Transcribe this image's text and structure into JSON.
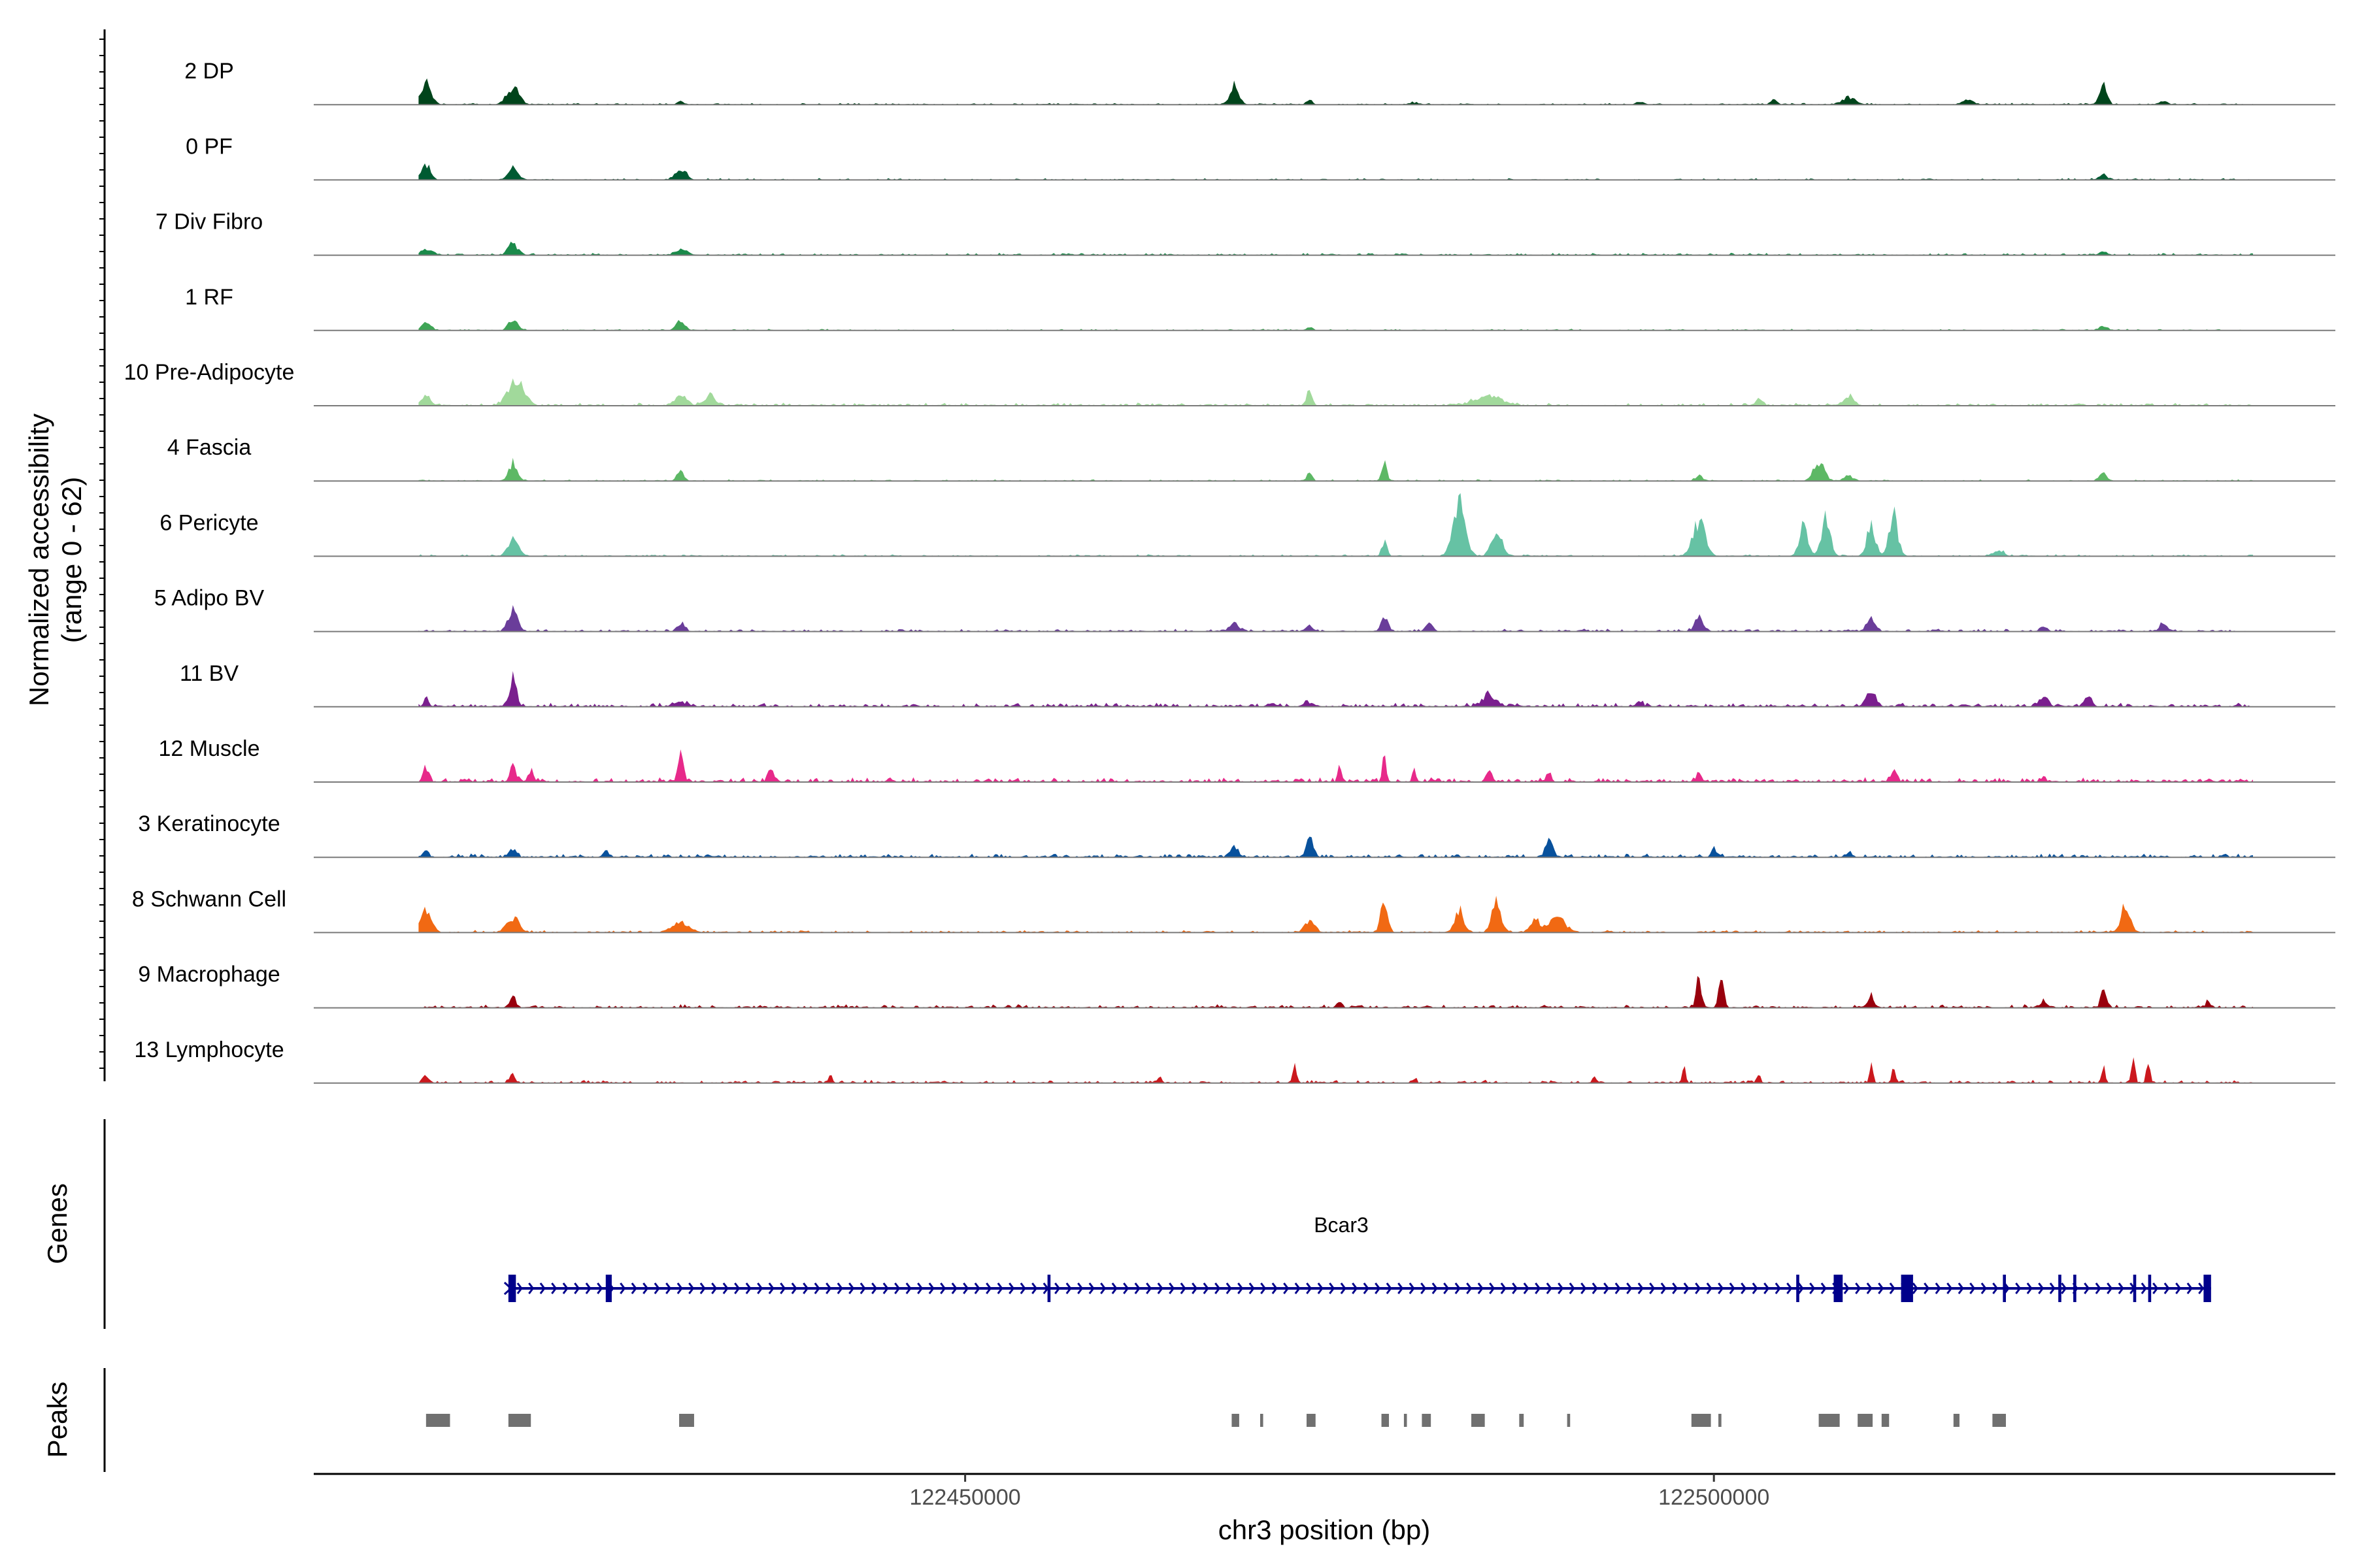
{
  "chart_data": {
    "type": "area",
    "title": "",
    "ylabel": [
      "Normalized accessibility",
      "(range 0 - 62)"
    ],
    "xlabel": "chr3 position (bp)",
    "xlim": [
      122406500,
      122541500
    ],
    "ylim": [
      0,
      62
    ],
    "x_ticks": [
      122450000,
      122500000
    ],
    "x_tick_labels": [
      "122450000",
      "122500000"
    ],
    "tracks": [
      {
        "name": "2 DP",
        "color": "#00441b",
        "baseline_noise": 0.9,
        "peaks": [
          [
            122414000,
            38,
            600
          ],
          [
            122419800,
            32,
            700
          ],
          [
            122431000,
            5,
            400
          ],
          [
            122468000,
            34,
            500
          ],
          [
            122473000,
            10,
            300
          ],
          [
            122480000,
            4,
            400
          ],
          [
            122495000,
            4,
            400
          ],
          [
            122504000,
            9,
            300
          ],
          [
            122509000,
            12,
            800
          ],
          [
            122517000,
            9,
            600
          ],
          [
            122526000,
            40,
            400
          ],
          [
            122530000,
            5,
            400
          ]
        ]
      },
      {
        "name": "0 PF",
        "color": "#005a32",
        "baseline_noise": 0.9,
        "peaks": [
          [
            122414000,
            28,
            500
          ],
          [
            122419800,
            28,
            500
          ],
          [
            122431000,
            20,
            600
          ],
          [
            122526000,
            8,
            500
          ]
        ]
      },
      {
        "name": "7 Div Fibro",
        "color": "#1a8a4a",
        "baseline_noise": 1.2,
        "peaks": [
          [
            122414000,
            10,
            700
          ],
          [
            122419800,
            18,
            600
          ],
          [
            122431000,
            9,
            700
          ],
          [
            122526000,
            5,
            500
          ]
        ]
      },
      {
        "name": "1 RF",
        "color": "#3fa556",
        "baseline_noise": 0.8,
        "peaks": [
          [
            122414000,
            14,
            500
          ],
          [
            122419800,
            20,
            500
          ],
          [
            122431000,
            18,
            500
          ],
          [
            122473000,
            7,
            300
          ],
          [
            122526000,
            9,
            400
          ]
        ]
      },
      {
        "name": "10 Pre-Adipocyte",
        "color": "#a1d99b",
        "baseline_noise": 1.6,
        "peaks": [
          [
            122414000,
            18,
            500
          ],
          [
            122420000,
            45,
            900
          ],
          [
            122431000,
            19,
            700
          ],
          [
            122433000,
            18,
            600
          ],
          [
            122473000,
            32,
            300
          ],
          [
            122485000,
            16,
            1500
          ],
          [
            122503000,
            10,
            500
          ],
          [
            122509000,
            20,
            500
          ]
        ]
      },
      {
        "name": "4 Fascia",
        "color": "#5db865",
        "baseline_noise": 0.8,
        "peaks": [
          [
            122419800,
            32,
            500
          ],
          [
            122431000,
            16,
            400
          ],
          [
            122473000,
            14,
            300
          ],
          [
            122478000,
            30,
            300
          ],
          [
            122499000,
            9,
            400
          ],
          [
            122507000,
            35,
            600
          ],
          [
            122509000,
            10,
            500
          ],
          [
            122526000,
            14,
            400
          ]
        ]
      },
      {
        "name": "6 Pericyte",
        "color": "#66c2a4",
        "baseline_noise": 1.0,
        "peaks": [
          [
            122419800,
            32,
            600
          ],
          [
            122478000,
            24,
            300
          ],
          [
            122483000,
            95,
            700
          ],
          [
            122485500,
            45,
            600
          ],
          [
            122499000,
            62,
            700
          ],
          [
            122506000,
            55,
            500
          ],
          [
            122507500,
            68,
            500
          ],
          [
            122510500,
            55,
            500
          ],
          [
            122512000,
            72,
            500
          ],
          [
            122519000,
            10,
            600
          ]
        ]
      },
      {
        "name": "5 Adipo BV",
        "color": "#6a3d9a",
        "baseline_noise": 1.4,
        "peaks": [
          [
            122419800,
            45,
            500
          ],
          [
            122431000,
            16,
            400
          ],
          [
            122468000,
            12,
            600
          ],
          [
            122473000,
            10,
            400
          ],
          [
            122478000,
            26,
            400
          ],
          [
            122481000,
            15,
            400
          ],
          [
            122499000,
            25,
            500
          ],
          [
            122510500,
            22,
            500
          ],
          [
            122522000,
            8,
            400
          ],
          [
            122530000,
            16,
            400
          ]
        ]
      },
      {
        "name": "11 BV",
        "color": "#7a1f8e",
        "baseline_noise": 2.2,
        "peaks": [
          [
            122414000,
            14,
            300
          ],
          [
            122419800,
            46,
            400
          ],
          [
            122431000,
            8,
            800
          ],
          [
            122473000,
            8,
            600
          ],
          [
            122485000,
            22,
            700
          ],
          [
            122495000,
            10,
            400
          ],
          [
            122510500,
            28,
            500
          ],
          [
            122522000,
            18,
            500
          ],
          [
            122525000,
            18,
            400
          ],
          [
            122535000,
            6,
            200
          ]
        ]
      },
      {
        "name": "12 Muscle",
        "color": "#e7298a",
        "baseline_noise": 2.4,
        "peaks": [
          [
            122414000,
            28,
            300
          ],
          [
            122419800,
            34,
            300
          ],
          [
            122421000,
            22,
            300
          ],
          [
            122431000,
            48,
            300
          ],
          [
            122437000,
            32,
            300
          ],
          [
            122475000,
            30,
            200
          ],
          [
            122478000,
            56,
            200
          ],
          [
            122480000,
            25,
            200
          ],
          [
            122485000,
            22,
            300
          ],
          [
            122489000,
            12,
            300
          ],
          [
            122499000,
            15,
            300
          ],
          [
            122512000,
            20,
            300
          ],
          [
            122522000,
            10,
            300
          ]
        ]
      },
      {
        "name": "3 Keratinocyte",
        "color": "#08519c",
        "baseline_noise": 2.0,
        "peaks": [
          [
            122414000,
            10,
            300
          ],
          [
            122419800,
            14,
            400
          ],
          [
            122426000,
            10,
            300
          ],
          [
            122473000,
            30,
            400
          ],
          [
            122468000,
            20,
            400
          ],
          [
            122489000,
            35,
            400
          ],
          [
            122500000,
            14,
            300
          ],
          [
            122509000,
            8,
            300
          ]
        ]
      },
      {
        "name": "8 Schwann Cell",
        "color": "#f16913",
        "baseline_noise": 1.3,
        "peaks": [
          [
            122414000,
            38,
            600
          ],
          [
            122419800,
            25,
            700
          ],
          [
            122431000,
            20,
            900
          ],
          [
            122473000,
            20,
            600
          ],
          [
            122478000,
            60,
            400
          ],
          [
            122483000,
            42,
            500
          ],
          [
            122485500,
            62,
            500
          ],
          [
            122488000,
            25,
            500
          ],
          [
            122489500,
            30,
            900
          ],
          [
            122527500,
            55,
            500
          ]
        ]
      },
      {
        "name": "9 Macrophage",
        "color": "#99000d",
        "baseline_noise": 1.8,
        "peaks": [
          [
            122419800,
            22,
            300
          ],
          [
            122475000,
            10,
            300
          ],
          [
            122499000,
            55,
            300
          ],
          [
            122500500,
            48,
            300
          ],
          [
            122510500,
            22,
            300
          ],
          [
            122522000,
            14,
            300
          ],
          [
            122526000,
            32,
            300
          ],
          [
            122533000,
            10,
            300
          ]
        ]
      },
      {
        "name": "13 Lymphocyte",
        "color": "#cb181d",
        "baseline_noise": 1.6,
        "peaks": [
          [
            122414000,
            12,
            300
          ],
          [
            122419800,
            16,
            300
          ],
          [
            122441000,
            16,
            200
          ],
          [
            122463000,
            14,
            200
          ],
          [
            122472000,
            28,
            200
          ],
          [
            122480000,
            8,
            200
          ],
          [
            122492000,
            12,
            200
          ],
          [
            122498000,
            30,
            200
          ],
          [
            122503000,
            16,
            200
          ],
          [
            122510500,
            34,
            200
          ],
          [
            122512000,
            28,
            200
          ],
          [
            122526000,
            30,
            200
          ],
          [
            122528000,
            52,
            200
          ],
          [
            122529000,
            36,
            200
          ]
        ]
      }
    ],
    "genes": {
      "label": "Genes",
      "name": "Bcar3",
      "color": "#00008b",
      "strand": "+",
      "start": 122419500,
      "end": 122533200,
      "exons": [
        [
          122419500,
          122420000
        ],
        [
          122426000,
          122426400
        ],
        [
          122455500,
          122455700
        ],
        [
          122505500,
          122505700
        ],
        [
          122508000,
          122508600
        ],
        [
          122512500,
          122513300
        ],
        [
          122519300,
          122519500
        ],
        [
          122523000,
          122523200
        ],
        [
          122524000,
          122524200
        ],
        [
          122528000,
          122528200
        ],
        [
          122529000,
          122529200
        ],
        [
          122532700,
          122533200
        ]
      ]
    },
    "peaks_track": {
      "label": "Peaks",
      "color": "#707070",
      "regions": [
        [
          122414000,
          122415600
        ],
        [
          122419500,
          122421000
        ],
        [
          122430900,
          122431900
        ],
        [
          122467800,
          122468300
        ],
        [
          122469700,
          122469900
        ],
        [
          122472800,
          122473400
        ],
        [
          122477800,
          122478300
        ],
        [
          122479300,
          122479500
        ],
        [
          122480500,
          122481100
        ],
        [
          122483800,
          122484700
        ],
        [
          122487000,
          122487300
        ],
        [
          122490200,
          122490400
        ],
        [
          122498500,
          122499800
        ],
        [
          122500300,
          122500500
        ],
        [
          122507000,
          122508400
        ],
        [
          122509600,
          122510600
        ],
        [
          122511200,
          122511700
        ],
        [
          122516000,
          122516400
        ],
        [
          122518600,
          122519500
        ]
      ]
    }
  }
}
